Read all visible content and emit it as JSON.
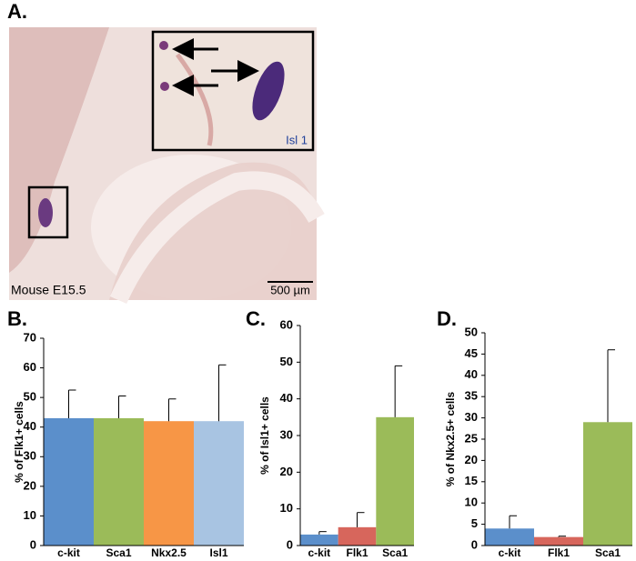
{
  "panel_a": {
    "label": "A.",
    "inset_label": "Isl 1",
    "caption": "Mouse E15.5",
    "scale_bar": "500 µm"
  },
  "chart_data": [
    {
      "type": "bar",
      "panel": "B.",
      "ylabel": "% of Flk1+ cells",
      "categories": [
        "c-kit",
        "Sca1",
        "Nkx2.5",
        "Isl1"
      ],
      "values": [
        43,
        43,
        42,
        42
      ],
      "errors": [
        9.5,
        7.5,
        7.5,
        19
      ],
      "colors": [
        "#5b8fcb",
        "#9bbb59",
        "#f79646",
        "#a8c4e2"
      ],
      "ylim": [
        0,
        70
      ],
      "yticks": [
        0,
        10,
        20,
        30,
        40,
        50,
        60,
        70
      ]
    },
    {
      "type": "bar",
      "panel": "C.",
      "ylabel": "% of Isl1+ cells",
      "categories": [
        "c-kit",
        "Flk1",
        "Sca1"
      ],
      "values": [
        3,
        5,
        35
      ],
      "errors": [
        0.8,
        4,
        14
      ],
      "colors": [
        "#5b8fcb",
        "#d7665c",
        "#9bbb59"
      ],
      "ylim": [
        0,
        60
      ],
      "yticks": [
        0,
        10,
        20,
        30,
        40,
        50,
        60
      ]
    },
    {
      "type": "bar",
      "panel": "D.",
      "ylabel": "% of Nkx2.5+ cells",
      "categories": [
        "c-kit",
        "Flk1",
        "Sca1"
      ],
      "values": [
        4,
        2,
        29
      ],
      "errors": [
        3,
        0.2,
        17
      ],
      "colors": [
        "#5b8fcb",
        "#d7665c",
        "#9bbb59"
      ],
      "ylim": [
        0,
        50
      ],
      "yticks": [
        0,
        5,
        10,
        15,
        20,
        25,
        30,
        35,
        40,
        45,
        50
      ]
    }
  ]
}
